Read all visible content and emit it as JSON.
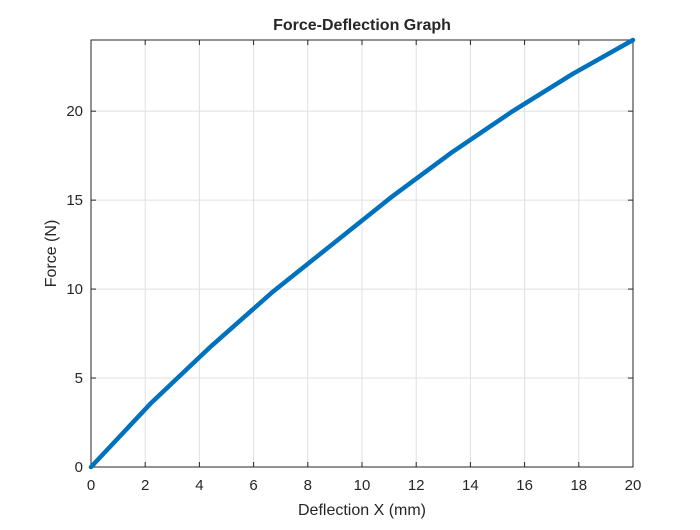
{
  "chart_data": {
    "type": "line",
    "title": "Force-Deflection Graph",
    "xlabel": "Deflection X (mm)",
    "ylabel": "Force (N)",
    "xlim": [
      0,
      20
    ],
    "ylim": [
      0,
      24
    ],
    "xticks": [
      0,
      2,
      4,
      6,
      8,
      10,
      12,
      14,
      16,
      18,
      20
    ],
    "yticks": [
      0,
      5,
      10,
      15,
      20
    ],
    "grid": true,
    "series": [
      {
        "color": "#0072bd",
        "x": [
          0,
          2.22,
          4.44,
          6.67,
          8.89,
          11.11,
          13.33,
          15.56,
          17.78,
          20
        ],
        "y": [
          0,
          3.6,
          6.8,
          9.8,
          12.5,
          15.2,
          17.7,
          20.0,
          22.1,
          24.0
        ]
      }
    ]
  }
}
